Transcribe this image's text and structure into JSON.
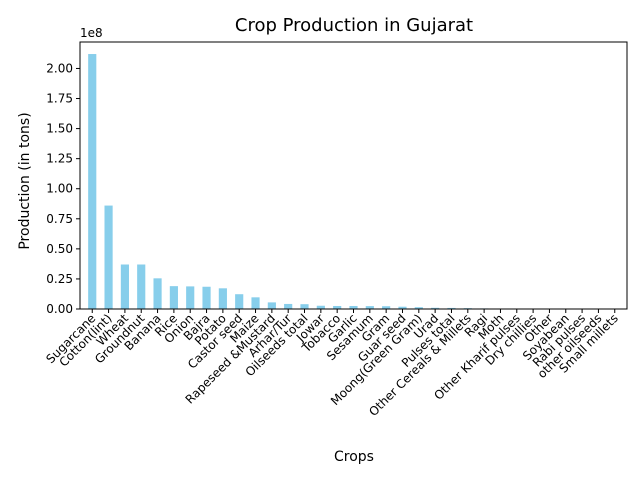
{
  "chart_data": {
    "type": "bar",
    "title": "Crop Production in Gujarat",
    "xlabel": "Crops",
    "ylabel": "Production (in tons)",
    "y_offset_label": "1e8",
    "ylim": [
      0,
      222000000
    ],
    "y_ticks": [
      0,
      25000000,
      50000000,
      75000000,
      100000000,
      125000000,
      150000000,
      175000000,
      200000000
    ],
    "y_tick_labels": [
      "0.00",
      "0.25",
      "0.50",
      "0.75",
      "1.00",
      "1.25",
      "1.50",
      "1.75",
      "2.00"
    ],
    "bar_color": "#87CEEB",
    "grid": false,
    "categories": [
      "Sugarcane",
      "Cotton(lint)",
      "Wheat",
      "Groundnut",
      "Banana",
      "Rice",
      "Onion",
      "Bajra",
      "Potato",
      "Castor seed",
      "Maize",
      "Rapeseed &Mustard",
      "Arhar/Tur",
      "Oilseeds total",
      "Jowar",
      "Tobacco",
      "Garlic",
      "Sesamum",
      "Gram",
      "Guar seed",
      "Moong(Green Gram)",
      "Urad",
      "Pulses total",
      "Other Cereals & Millets",
      "Ragi",
      "Moth",
      "Other Kharif pulses",
      "Dry chillies",
      "Other",
      "Soyabean",
      "Rabi pulses",
      "other oilseeds",
      "Small millets"
    ],
    "values": [
      212000000,
      86000000,
      37000000,
      37000000,
      25500000,
      19000000,
      18800000,
      18500000,
      17200000,
      12300000,
      9700000,
      5500000,
      4200000,
      4000000,
      2700000,
      2500000,
      2500000,
      2400000,
      2300000,
      1900000,
      1500000,
      1000000,
      900000,
      700000,
      500000,
      400000,
      300000,
      250000,
      200000,
      150000,
      100000,
      80000,
      50000
    ]
  }
}
